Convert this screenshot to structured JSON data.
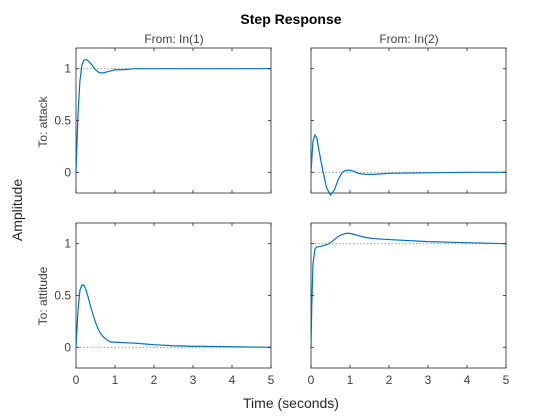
{
  "chart_data": {
    "type": "line",
    "title": "Step Response",
    "xlabel": "Time (seconds)",
    "ylabel": "Amplitude",
    "column_titles": [
      "From: In(1)",
      "From: In(2)"
    ],
    "row_labels": [
      "To: attack",
      "To: attitude"
    ],
    "xlim": [
      0,
      5
    ],
    "x_ticks": [
      "0",
      "1",
      "2",
      "3",
      "4",
      "5"
    ],
    "ylim": [
      -0.2,
      1.2
    ],
    "y_ticks": [
      "0",
      "0.5",
      "1"
    ],
    "grid": false,
    "line_color": "#0072BD",
    "subplots": [
      {
        "row": 0,
        "col": 0,
        "final_value": 1,
        "x": [
          0,
          0.05,
          0.1,
          0.15,
          0.2,
          0.25,
          0.3,
          0.4,
          0.5,
          0.6,
          0.7,
          0.8,
          0.9,
          1.0,
          1.2,
          1.5,
          2,
          3,
          4,
          5
        ],
        "y": [
          0,
          0.55,
          0.88,
          1.03,
          1.08,
          1.09,
          1.08,
          1.04,
          0.99,
          0.96,
          0.96,
          0.97,
          0.98,
          0.99,
          0.99,
          1.0,
          1.0,
          1.0,
          1.0,
          1.0
        ]
      },
      {
        "row": 0,
        "col": 1,
        "final_value": 0,
        "x": [
          0,
          0.05,
          0.1,
          0.15,
          0.2,
          0.3,
          0.4,
          0.5,
          0.6,
          0.7,
          0.8,
          0.9,
          1.0,
          1.1,
          1.2,
          1.4,
          1.6,
          2,
          3,
          4,
          5
        ],
        "y": [
          0,
          0.3,
          0.36,
          0.33,
          0.22,
          0.02,
          -0.15,
          -0.22,
          -0.17,
          -0.07,
          0.0,
          0.02,
          0.02,
          0.01,
          -0.01,
          -0.02,
          -0.02,
          -0.01,
          -0.005,
          0.0,
          0.0
        ]
      },
      {
        "row": 1,
        "col": 0,
        "final_value": 0,
        "x": [
          0,
          0.05,
          0.1,
          0.15,
          0.2,
          0.25,
          0.3,
          0.4,
          0.5,
          0.6,
          0.7,
          0.8,
          0.9,
          1.0,
          1.2,
          1.5,
          2,
          2.5,
          3,
          4,
          5
        ],
        "y": [
          0,
          0.35,
          0.55,
          0.6,
          0.6,
          0.56,
          0.5,
          0.36,
          0.24,
          0.15,
          0.1,
          0.07,
          0.05,
          0.05,
          0.045,
          0.04,
          0.025,
          0.015,
          0.01,
          0.005,
          0.0
        ]
      },
      {
        "row": 1,
        "col": 1,
        "final_value": 1,
        "x": [
          0,
          0.02,
          0.05,
          0.1,
          0.15,
          0.2,
          0.3,
          0.4,
          0.5,
          0.6,
          0.7,
          0.8,
          0.9,
          1.0,
          1.1,
          1.2,
          1.4,
          1.6,
          2,
          3,
          4,
          5
        ],
        "y": [
          0,
          0.4,
          0.8,
          0.95,
          0.97,
          0.97,
          0.98,
          0.99,
          1.01,
          1.04,
          1.07,
          1.09,
          1.1,
          1.1,
          1.09,
          1.08,
          1.06,
          1.05,
          1.04,
          1.02,
          1.01,
          1.0
        ]
      }
    ]
  }
}
